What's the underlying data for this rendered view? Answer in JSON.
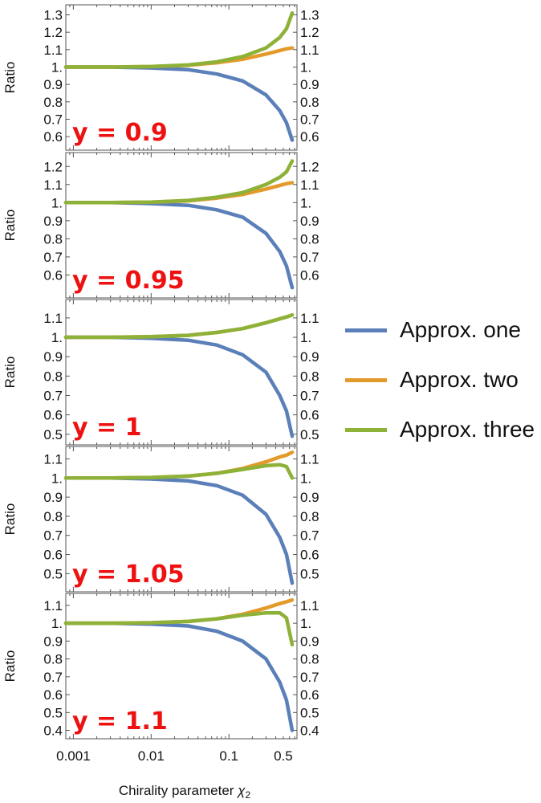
{
  "chart_data": {
    "type": "line",
    "xlabel": "Chirality parameter",
    "xlabel_symbol": "χ",
    "xlabel_subscript": "2",
    "xscale": "log",
    "xlim": [
      0.0008,
      0.75
    ],
    "xticks": [
      {
        "value": 0.001,
        "label": "0.001"
      },
      {
        "value": 0.01,
        "label": "0.01"
      },
      {
        "value": 0.1,
        "label": "0.1"
      },
      {
        "value": 0.5,
        "label": "0.5"
      }
    ],
    "ylabel": "Ratio",
    "legend": {
      "placement": "right",
      "entries": [
        "Approx. one",
        "Approx. two",
        "Approx. three"
      ]
    },
    "colors": {
      "Approx. one": "#5b7fb9",
      "Approx. two": "#e39a2b",
      "Approx. three": "#8eb138",
      "panel_label": "#ee1111"
    },
    "panels": [
      {
        "label": "y = 0.9",
        "ylim": [
          0.55,
          1.33
        ],
        "yticks": [
          {
            "value": 0.6,
            "label": "0.6"
          },
          {
            "value": 0.7,
            "label": "0.7"
          },
          {
            "value": 0.8,
            "label": "0.8"
          },
          {
            "value": 0.9,
            "label": "0.9"
          },
          {
            "value": 1.0,
            "label": "1."
          },
          {
            "value": 1.1,
            "label": "1.1"
          },
          {
            "value": 1.2,
            "label": "1.2"
          },
          {
            "value": 1.3,
            "label": "1.3"
          }
        ],
        "series": [
          {
            "name": "Approx. one",
            "points": [
              [
                0.0008,
                1.0
              ],
              [
                0.003,
                1.0
              ],
              [
                0.01,
                0.995
              ],
              [
                0.03,
                0.985
              ],
              [
                0.07,
                0.96
              ],
              [
                0.15,
                0.92
              ],
              [
                0.3,
                0.84
              ],
              [
                0.45,
                0.75
              ],
              [
                0.55,
                0.68
              ],
              [
                0.65,
                0.58
              ]
            ]
          },
          {
            "name": "Approx. two",
            "points": [
              [
                0.0008,
                1.0
              ],
              [
                0.003,
                1.0
              ],
              [
                0.01,
                1.003
              ],
              [
                0.03,
                1.01
              ],
              [
                0.07,
                1.025
              ],
              [
                0.15,
                1.045
              ],
              [
                0.3,
                1.075
              ],
              [
                0.45,
                1.095
              ],
              [
                0.55,
                1.105
              ],
              [
                0.65,
                1.11
              ]
            ]
          },
          {
            "name": "Approx. three",
            "points": [
              [
                0.0008,
                1.0
              ],
              [
                0.003,
                1.0
              ],
              [
                0.01,
                1.003
              ],
              [
                0.03,
                1.012
              ],
              [
                0.07,
                1.03
              ],
              [
                0.15,
                1.06
              ],
              [
                0.3,
                1.11
              ],
              [
                0.45,
                1.17
              ],
              [
                0.55,
                1.22
              ],
              [
                0.65,
                1.31
              ]
            ]
          }
        ]
      },
      {
        "label": "y = 0.95",
        "ylim": [
          0.5,
          1.25
        ],
        "yticks": [
          {
            "value": 0.6,
            "label": "0.6"
          },
          {
            "value": 0.7,
            "label": "0.7"
          },
          {
            "value": 0.8,
            "label": "0.8"
          },
          {
            "value": 0.9,
            "label": "0.9"
          },
          {
            "value": 1.0,
            "label": "1."
          },
          {
            "value": 1.1,
            "label": "1.1"
          },
          {
            "value": 1.2,
            "label": "1.2"
          }
        ],
        "series": [
          {
            "name": "Approx. one",
            "points": [
              [
                0.0008,
                1.0
              ],
              [
                0.003,
                1.0
              ],
              [
                0.01,
                0.995
              ],
              [
                0.03,
                0.985
              ],
              [
                0.07,
                0.96
              ],
              [
                0.15,
                0.92
              ],
              [
                0.3,
                0.83
              ],
              [
                0.45,
                0.73
              ],
              [
                0.55,
                0.65
              ],
              [
                0.65,
                0.53
              ]
            ]
          },
          {
            "name": "Approx. two",
            "points": [
              [
                0.0008,
                1.0
              ],
              [
                0.003,
                1.0
              ],
              [
                0.01,
                1.003
              ],
              [
                0.03,
                1.01
              ],
              [
                0.07,
                1.025
              ],
              [
                0.15,
                1.045
              ],
              [
                0.3,
                1.075
              ],
              [
                0.45,
                1.095
              ],
              [
                0.55,
                1.105
              ],
              [
                0.65,
                1.11
              ]
            ]
          },
          {
            "name": "Approx. three",
            "points": [
              [
                0.0008,
                1.0
              ],
              [
                0.003,
                1.0
              ],
              [
                0.01,
                1.003
              ],
              [
                0.03,
                1.012
              ],
              [
                0.07,
                1.03
              ],
              [
                0.15,
                1.055
              ],
              [
                0.3,
                1.1
              ],
              [
                0.45,
                1.14
              ],
              [
                0.55,
                1.17
              ],
              [
                0.65,
                1.23
              ]
            ]
          }
        ]
      },
      {
        "label": "y = 1",
        "ylim": [
          0.47,
          1.17
        ],
        "yticks": [
          {
            "value": 0.5,
            "label": "0.5"
          },
          {
            "value": 0.6,
            "label": "0.6"
          },
          {
            "value": 0.7,
            "label": "0.7"
          },
          {
            "value": 0.8,
            "label": "0.8"
          },
          {
            "value": 0.9,
            "label": "0.9"
          },
          {
            "value": 1.0,
            "label": "1."
          },
          {
            "value": 1.1,
            "label": "1.1"
          }
        ],
        "series": [
          {
            "name": "Approx. one",
            "points": [
              [
                0.0008,
                1.0
              ],
              [
                0.003,
                1.0
              ],
              [
                0.01,
                0.995
              ],
              [
                0.03,
                0.985
              ],
              [
                0.07,
                0.96
              ],
              [
                0.15,
                0.91
              ],
              [
                0.3,
                0.82
              ],
              [
                0.45,
                0.7
              ],
              [
                0.55,
                0.62
              ],
              [
                0.65,
                0.49
              ]
            ]
          },
          {
            "name": "Approx. two",
            "points": [
              [
                0.0008,
                1.0
              ],
              [
                0.003,
                1.0
              ],
              [
                0.01,
                1.003
              ],
              [
                0.03,
                1.01
              ],
              [
                0.07,
                1.025
              ],
              [
                0.15,
                1.045
              ],
              [
                0.3,
                1.075
              ],
              [
                0.45,
                1.095
              ],
              [
                0.55,
                1.105
              ],
              [
                0.65,
                1.115
              ]
            ]
          },
          {
            "name": "Approx. three",
            "points": [
              [
                0.0008,
                1.0
              ],
              [
                0.003,
                1.0
              ],
              [
                0.01,
                1.003
              ],
              [
                0.03,
                1.01
              ],
              [
                0.07,
                1.025
              ],
              [
                0.15,
                1.045
              ],
              [
                0.3,
                1.075
              ],
              [
                0.45,
                1.095
              ],
              [
                0.55,
                1.105
              ],
              [
                0.65,
                1.115
              ]
            ]
          }
        ]
      },
      {
        "label": "y = 1.05",
        "ylim": [
          0.43,
          1.14
        ],
        "yticks": [
          {
            "value": 0.5,
            "label": "0.5"
          },
          {
            "value": 0.6,
            "label": "0.6"
          },
          {
            "value": 0.7,
            "label": "0.7"
          },
          {
            "value": 0.8,
            "label": "0.8"
          },
          {
            "value": 0.9,
            "label": "0.9"
          },
          {
            "value": 1.0,
            "label": "1."
          },
          {
            "value": 1.1,
            "label": "1.1"
          }
        ],
        "series": [
          {
            "name": "Approx. one",
            "points": [
              [
                0.0008,
                1.0
              ],
              [
                0.003,
                1.0
              ],
              [
                0.01,
                0.995
              ],
              [
                0.03,
                0.985
              ],
              [
                0.07,
                0.96
              ],
              [
                0.15,
                0.91
              ],
              [
                0.3,
                0.81
              ],
              [
                0.45,
                0.69
              ],
              [
                0.55,
                0.6
              ],
              [
                0.65,
                0.45
              ]
            ]
          },
          {
            "name": "Approx. two",
            "points": [
              [
                0.0008,
                1.0
              ],
              [
                0.003,
                1.0
              ],
              [
                0.01,
                1.003
              ],
              [
                0.03,
                1.01
              ],
              [
                0.07,
                1.025
              ],
              [
                0.15,
                1.05
              ],
              [
                0.3,
                1.085
              ],
              [
                0.45,
                1.11
              ],
              [
                0.55,
                1.12
              ],
              [
                0.65,
                1.135
              ]
            ]
          },
          {
            "name": "Approx. three",
            "points": [
              [
                0.0008,
                1.0
              ],
              [
                0.003,
                1.0
              ],
              [
                0.01,
                1.003
              ],
              [
                0.03,
                1.01
              ],
              [
                0.07,
                1.025
              ],
              [
                0.15,
                1.045
              ],
              [
                0.3,
                1.065
              ],
              [
                0.45,
                1.07
              ],
              [
                0.55,
                1.06
              ],
              [
                0.65,
                1.0
              ]
            ]
          }
        ]
      },
      {
        "label": "y = 1.1",
        "ylim": [
          0.38,
          1.14
        ],
        "yticks": [
          {
            "value": 0.4,
            "label": "0.4"
          },
          {
            "value": 0.5,
            "label": "0.5"
          },
          {
            "value": 0.6,
            "label": "0.6"
          },
          {
            "value": 0.7,
            "label": "0.7"
          },
          {
            "value": 0.8,
            "label": "0.8"
          },
          {
            "value": 0.9,
            "label": "0.9"
          },
          {
            "value": 1.0,
            "label": "1."
          },
          {
            "value": 1.1,
            "label": "1.1"
          }
        ],
        "series": [
          {
            "name": "Approx. one",
            "points": [
              [
                0.0008,
                1.0
              ],
              [
                0.003,
                1.0
              ],
              [
                0.01,
                0.995
              ],
              [
                0.03,
                0.985
              ],
              [
                0.07,
                0.955
              ],
              [
                0.15,
                0.9
              ],
              [
                0.3,
                0.8
              ],
              [
                0.45,
                0.67
              ],
              [
                0.55,
                0.57
              ],
              [
                0.65,
                0.4
              ]
            ]
          },
          {
            "name": "Approx. two",
            "points": [
              [
                0.0008,
                1.0
              ],
              [
                0.003,
                1.0
              ],
              [
                0.01,
                1.003
              ],
              [
                0.03,
                1.01
              ],
              [
                0.07,
                1.025
              ],
              [
                0.15,
                1.05
              ],
              [
                0.3,
                1.085
              ],
              [
                0.45,
                1.11
              ],
              [
                0.55,
                1.12
              ],
              [
                0.65,
                1.13
              ]
            ]
          },
          {
            "name": "Approx. three",
            "points": [
              [
                0.0008,
                1.0
              ],
              [
                0.003,
                1.0
              ],
              [
                0.01,
                1.003
              ],
              [
                0.03,
                1.01
              ],
              [
                0.07,
                1.025
              ],
              [
                0.15,
                1.045
              ],
              [
                0.3,
                1.058
              ],
              [
                0.45,
                1.058
              ],
              [
                0.55,
                1.03
              ],
              [
                0.65,
                0.88
              ]
            ]
          }
        ]
      }
    ]
  }
}
